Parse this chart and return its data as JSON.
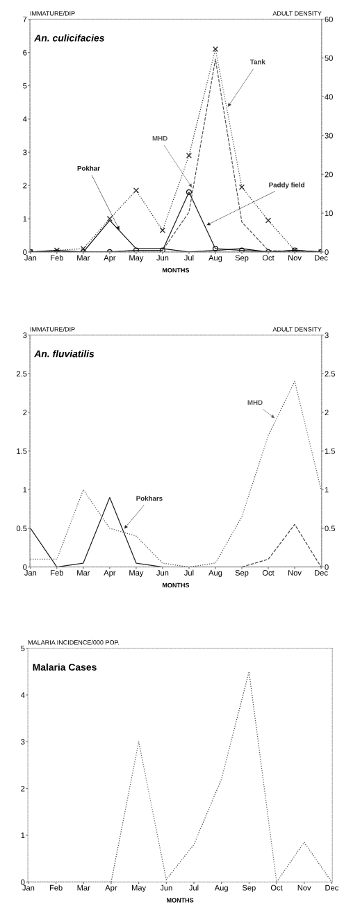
{
  "chart_data": [
    {
      "type": "line",
      "title": "An. culicifacies",
      "xlabel": "MONTHS",
      "ylabel": "IMMATURE/DIP",
      "y2label": "ADULT DENSITY",
      "categories": [
        "Jan",
        "Feb",
        "Mar",
        "Apr",
        "May",
        "Jun",
        "Jul",
        "Aug",
        "Sep",
        "Oct",
        "Nov",
        "Dec"
      ],
      "series": [
        {
          "name": "Tank",
          "color": "#333333",
          "marker": "cross",
          "line_style": "dotted",
          "values": [
            0,
            0.05,
            0.1,
            1.0,
            1.85,
            0.65,
            2.9,
            6.1,
            1.95,
            0.95,
            0.05,
            0
          ]
        },
        {
          "name": "MHD",
          "color": "#555555",
          "marker": "none",
          "line_style": "dashed",
          "values": [
            0,
            0,
            0,
            0,
            0.05,
            0.05,
            1.2,
            5.8,
            0.9,
            0.05,
            0,
            0
          ]
        },
        {
          "name": "Paddy field",
          "color": "#222222",
          "marker": "circle",
          "line_style": "solid",
          "values": [
            0,
            0,
            0,
            0,
            0.05,
            0.05,
            1.8,
            0.1,
            0.05,
            0,
            0.05,
            0
          ]
        },
        {
          "name": "Pokhar",
          "color": "#111111",
          "marker": "none",
          "line_style": "solid",
          "values": [
            0,
            0.05,
            0,
            0.95,
            0.1,
            0.1,
            0,
            0.05,
            0.1,
            0,
            0.05,
            0
          ]
        }
      ],
      "ylim": [
        0,
        7
      ],
      "yticks": [
        0,
        1,
        2,
        3,
        4,
        5,
        6,
        7
      ],
      "y2lim": [
        0,
        60
      ],
      "y2ticks": [
        0,
        10,
        20,
        30,
        40,
        50,
        60
      ]
    },
    {
      "type": "line",
      "title": "An. fluviatilis",
      "xlabel": "MONTHS",
      "ylabel": "IMMATURE/DIP",
      "y2label": "ADULT DENSITY",
      "categories": [
        "Jan",
        "Feb",
        "Mar",
        "Apr",
        "May",
        "Jun",
        "Jul",
        "Aug",
        "Sep",
        "Oct",
        "Nov",
        "Dec"
      ],
      "series": [
        {
          "name": "Pokhars",
          "color": "#222222",
          "marker": "none",
          "line_style": "solid",
          "values": [
            0.5,
            0,
            0.05,
            0.9,
            0.05,
            0,
            0,
            0,
            0,
            0,
            0,
            0
          ]
        },
        {
          "name": "MHD",
          "color": "#555555",
          "marker": "none",
          "line_style": "dotted",
          "values": [
            0.1,
            0.1,
            1.0,
            0.5,
            0.4,
            0.05,
            0,
            0.05,
            0.65,
            1.7,
            2.4,
            1.0
          ]
        },
        {
          "color": "#444444",
          "marker": "none",
          "line_style": "dashed",
          "values": [
            null,
            null,
            null,
            null,
            null,
            null,
            null,
            null,
            0,
            0.1,
            0.55,
            0
          ]
        }
      ],
      "ylim": [
        0,
        3
      ],
      "yticks": [
        0,
        0.5,
        1,
        1.5,
        2,
        2.5,
        3
      ],
      "y2lim": [
        0,
        3
      ],
      "y2ticks": [
        0,
        0.5,
        1,
        1.5,
        2,
        2.5,
        3
      ]
    },
    {
      "type": "line",
      "title": "Malaria Cases",
      "xlabel": "MONTHS",
      "ylabel": "MALARIA INCIDENCE/000 POP.",
      "categories": [
        "Jan",
        "Feb",
        "Mar",
        "Apr",
        "May",
        "Jun",
        "Jul",
        "Aug",
        "Sep",
        "Oct",
        "Nov",
        "Dec"
      ],
      "series": [
        {
          "color": "#444444",
          "marker": "none",
          "line_style": "dotted",
          "values": [
            0,
            0,
            0,
            0,
            3.0,
            0.05,
            0.8,
            2.2,
            4.5,
            0,
            0.85,
            0
          ]
        }
      ],
      "ylim": [
        0,
        5
      ],
      "yticks": [
        0,
        1,
        2,
        3,
        4,
        5
      ]
    }
  ]
}
